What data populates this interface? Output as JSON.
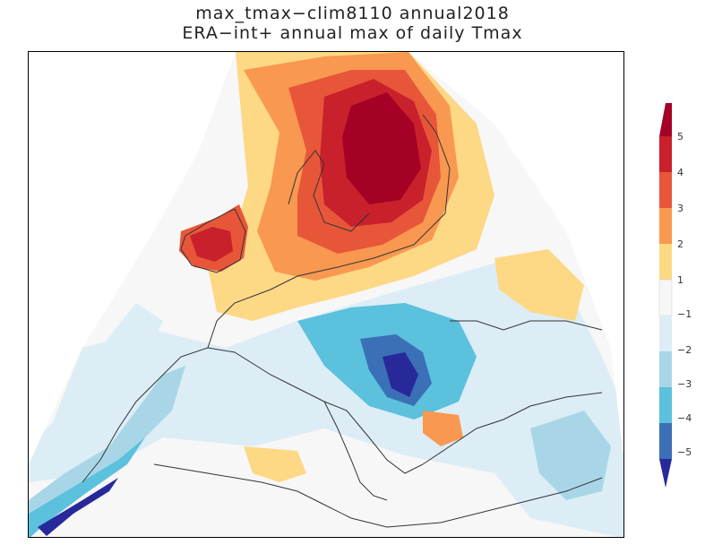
{
  "title": "max_tmax−clim8110 annual2018",
  "subtitle": "ERA−int+ annual max of daily Tmax",
  "colorbar": {
    "levels": [
      "5",
      "4",
      "3",
      "2",
      "1",
      "−1",
      "−2",
      "−3",
      "−4",
      "−5"
    ],
    "colors": {
      "gt5": "#a50026",
      "4to5": "#c8212b",
      "3to4": "#e8563a",
      "2to3": "#f99850",
      "1to2": "#fdd885",
      "m1to1": "#f7f7f7",
      "m2tom1": "#dcedf6",
      "m3tom2": "#a9d6e7",
      "m4tom3": "#5bc1dd",
      "m5tom4": "#3b6fb6",
      "ltm5": "#27299b"
    }
  }
}
